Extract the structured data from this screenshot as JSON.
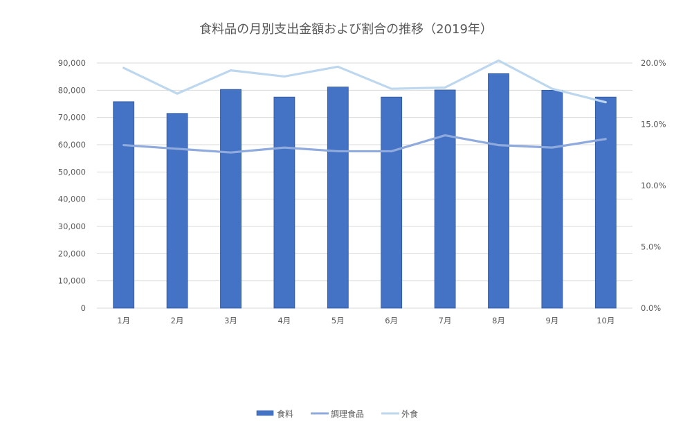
{
  "chart_data": {
    "type": "bar",
    "title": "食料品の月別支出金額および割合の推移（2019年）",
    "categories": [
      "1月",
      "2月",
      "3月",
      "4月",
      "5月",
      "6月",
      "7月",
      "8月",
      "9月",
      "10月"
    ],
    "series": [
      {
        "name": "食料",
        "type": "bar",
        "axis": "left",
        "color": "#4472C4",
        "values": [
          75800,
          71500,
          80300,
          77500,
          81200,
          77500,
          80100,
          86100,
          80000,
          77500
        ]
      },
      {
        "name": "調理食品",
        "type": "line",
        "axis": "right",
        "color": "#8FAADC",
        "values": [
          0.133,
          0.13,
          0.127,
          0.131,
          0.128,
          0.128,
          0.141,
          0.133,
          0.131,
          0.138
        ]
      },
      {
        "name": "外食",
        "type": "line",
        "axis": "right",
        "color": "#BDD7EE",
        "values": [
          0.196,
          0.175,
          0.194,
          0.189,
          0.197,
          0.179,
          0.18,
          0.202,
          0.179,
          0.168
        ]
      }
    ],
    "y_left": {
      "ylim": [
        0,
        90000
      ],
      "ticks": [
        "0",
        "10,000",
        "20,000",
        "30,000",
        "40,000",
        "50,000",
        "60,000",
        "70,000",
        "80,000",
        "90,000"
      ]
    },
    "y_right": {
      "ylim": [
        0,
        0.2
      ],
      "ticks": [
        "0.0%",
        "5.0%",
        "10.0%",
        "15.0%",
        "20.0%"
      ]
    },
    "grid": true,
    "legend_position": "bottom"
  }
}
